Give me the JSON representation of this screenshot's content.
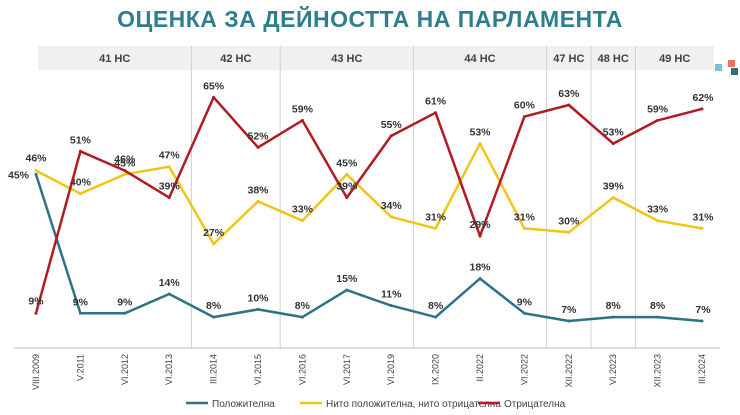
{
  "chart_data": {
    "type": "line",
    "title": "ОЦЕНКА ЗА ДЕЙНОСТТА НА ПАРЛАМЕНТА",
    "categories": [
      "VIII.2009",
      "V.2011",
      "VI.2012",
      "VI.2013",
      "III.2014",
      "VI.2015",
      "VI.2016",
      "VI.2017",
      "VI.2019",
      "IX.2020",
      "II.2022",
      "VI.2022",
      "XII.2022",
      "VI.2023",
      "XII.2023",
      "III.2024"
    ],
    "parliaments": [
      {
        "label": "41 НС",
        "start": 0,
        "end": 3
      },
      {
        "label": "42 НС",
        "start": 4,
        "end": 5
      },
      {
        "label": "43 НС",
        "start": 6,
        "end": 8
      },
      {
        "label": "44 НС",
        "start": 9,
        "end": 11
      },
      {
        "label": "47 НС",
        "start": 12,
        "end": 12
      },
      {
        "label": "48 НС",
        "start": 13,
        "end": 13
      },
      {
        "label": "49 НС",
        "start": 14,
        "end": 15
      }
    ],
    "series": [
      {
        "name": "Положителна",
        "color": "#2e7385",
        "values": [
          45,
          9,
          9,
          14,
          8,
          10,
          8,
          15,
          11,
          8,
          18,
          9,
          7,
          8,
          8,
          7
        ],
        "labels": [
          "45%",
          "9%",
          "9%",
          "14%",
          "8%",
          "10%",
          "8%",
          "15%",
          "11%",
          "8%",
          "18%",
          "9%",
          "7%",
          "8%",
          "8%",
          "7%"
        ]
      },
      {
        "name": "Нито положителна, нито отрицателна",
        "color": "#f2c318",
        "values": [
          46,
          40,
          45,
          47,
          27,
          38,
          33,
          45,
          34,
          31,
          53,
          31,
          30,
          39,
          33,
          31
        ],
        "labels": [
          "46%",
          "40%",
          "45%",
          "47%",
          "27%",
          "38%",
          "33%",
          "45%",
          "34%",
          "31%",
          "53%",
          "31%",
          "30%",
          "39%",
          "33%",
          "31%"
        ]
      },
      {
        "name": "Отрицателна",
        "color": "#b01c22",
        "values": [
          9,
          51,
          46,
          39,
          65,
          52,
          59,
          39,
          55,
          61,
          29,
          60,
          63,
          53,
          59,
          62
        ],
        "labels": [
          "9%",
          "51%",
          "46%",
          "39%",
          "65%",
          "52%",
          "59%",
          "39%",
          "55%",
          "61%",
          "29%",
          "60%",
          "63%",
          "53%",
          "59%",
          "62%"
        ]
      }
    ],
    "ylim": [
      0,
      70
    ],
    "legend_position": "bottom"
  },
  "colors": {
    "title": "#2e7f8c",
    "band": "#f0f0f0",
    "deco_a": "#e8735a",
    "deco_b": "#79c3cf",
    "deco_c": "#2e6e7e"
  }
}
